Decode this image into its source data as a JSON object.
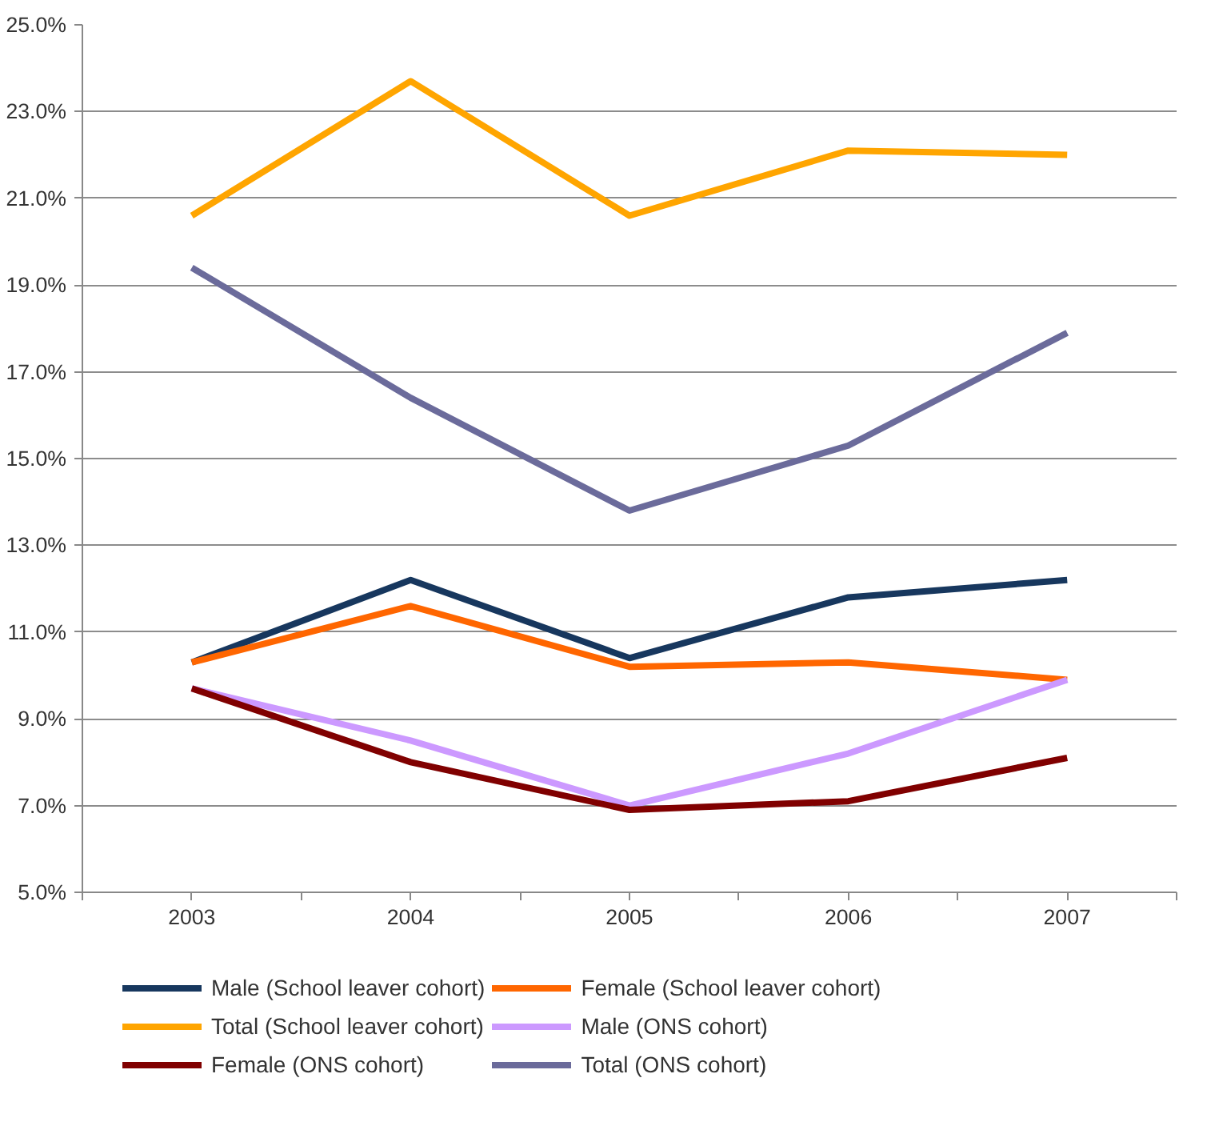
{
  "chart_data": {
    "type": "line",
    "categories": [
      "2003",
      "2004",
      "2005",
      "2006",
      "2007"
    ],
    "ylim": [
      5,
      25
    ],
    "yticks": [
      {
        "value": 5,
        "label": "5.0%"
      },
      {
        "value": 7,
        "label": "7.0%"
      },
      {
        "value": 9,
        "label": "9.0%"
      },
      {
        "value": 11,
        "label": "11.0%"
      },
      {
        "value": 13,
        "label": "13.0%"
      },
      {
        "value": 15,
        "label": "15.0%"
      },
      {
        "value": 17,
        "label": "17.0%"
      },
      {
        "value": 19,
        "label": "19.0%"
      },
      {
        "value": 21,
        "label": "21.0%"
      },
      {
        "value": 23,
        "label": "23.0%"
      },
      {
        "value": 25,
        "label": "25.0%"
      }
    ],
    "grid": "y",
    "legend": "bottom",
    "marker": "none",
    "line_style": "solid",
    "series": [
      {
        "name": "Male (School leaver cohort)",
        "color": "#17375e",
        "values": [
          10.3,
          12.2,
          10.4,
          11.8,
          12.2
        ]
      },
      {
        "name": "Female (School leaver cohort)",
        "color": "#ff6600",
        "values": [
          10.3,
          11.6,
          10.2,
          10.3,
          9.9
        ]
      },
      {
        "name": "Total (School leaver cohort)",
        "color": "#ffa500",
        "values": [
          20.6,
          23.7,
          20.6,
          22.1,
          22.0
        ]
      },
      {
        "name": "Male (ONS cohort)",
        "color": "#cc99ff",
        "values": [
          9.7,
          8.5,
          7.0,
          8.2,
          9.9
        ]
      },
      {
        "name": "Female (ONS cohort)",
        "color": "#800000",
        "values": [
          9.7,
          8.0,
          6.9,
          7.1,
          8.1
        ]
      },
      {
        "name": "Total (ONS cohort)",
        "color": "#6b6b9b",
        "values": [
          19.4,
          16.4,
          13.8,
          15.3,
          17.9
        ]
      }
    ]
  }
}
